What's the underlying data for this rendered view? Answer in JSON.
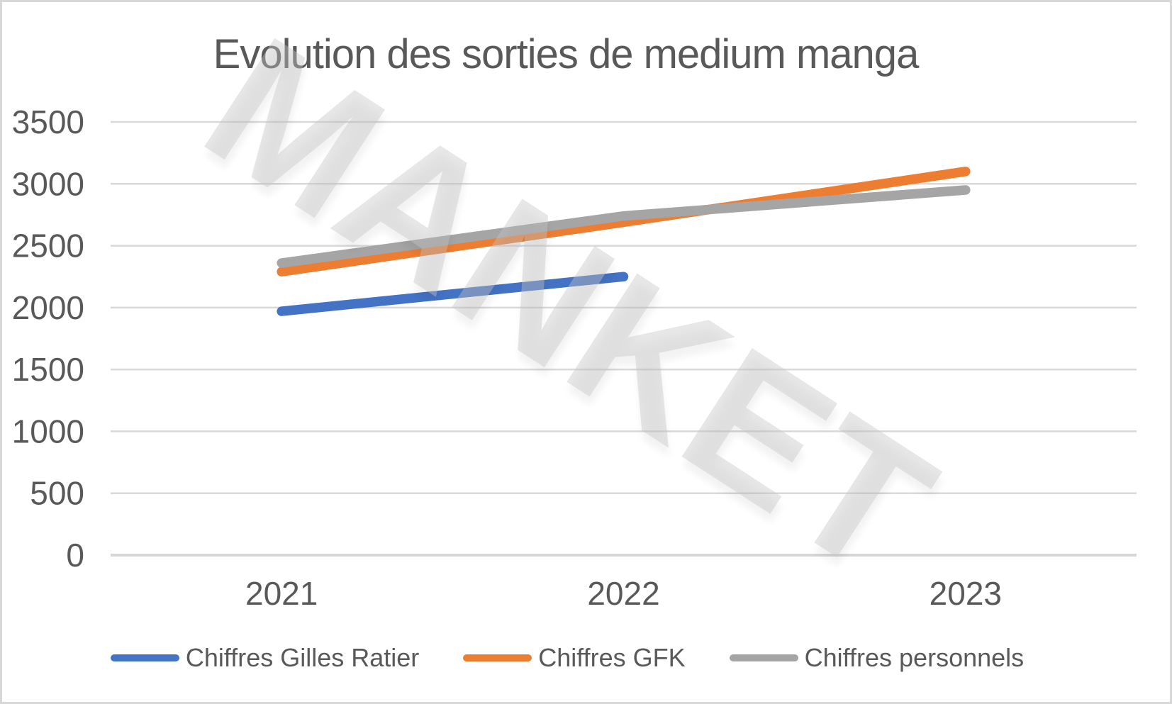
{
  "chart_data": {
    "type": "line",
    "title": "Evolution des sorties de medium manga",
    "categories": [
      "2021",
      "2022",
      "2023"
    ],
    "series": [
      {
        "name": "Chiffres Gilles Ratier",
        "color": "#4472C4",
        "values": [
          1970,
          2250,
          null
        ]
      },
      {
        "name": "Chiffres GFK",
        "color": "#ED7D31",
        "values": [
          2290,
          2690,
          3100
        ]
      },
      {
        "name": "Chiffres personnels",
        "color": "#A5A5A5",
        "values": [
          2360,
          2740,
          2950
        ]
      }
    ],
    "xlabel": "",
    "ylabel": "",
    "ylim": [
      0,
      3500
    ],
    "yticks": [
      3500,
      3000,
      2500,
      2000,
      1500,
      1000,
      500,
      0
    ],
    "grid": true,
    "legend_position": "bottom"
  },
  "watermark": {
    "text": "MANKET"
  },
  "colors": {
    "text": "#595959",
    "gridline": "#d9d9d9",
    "frame_border": "#d8d8d8",
    "background": "#ffffff"
  }
}
